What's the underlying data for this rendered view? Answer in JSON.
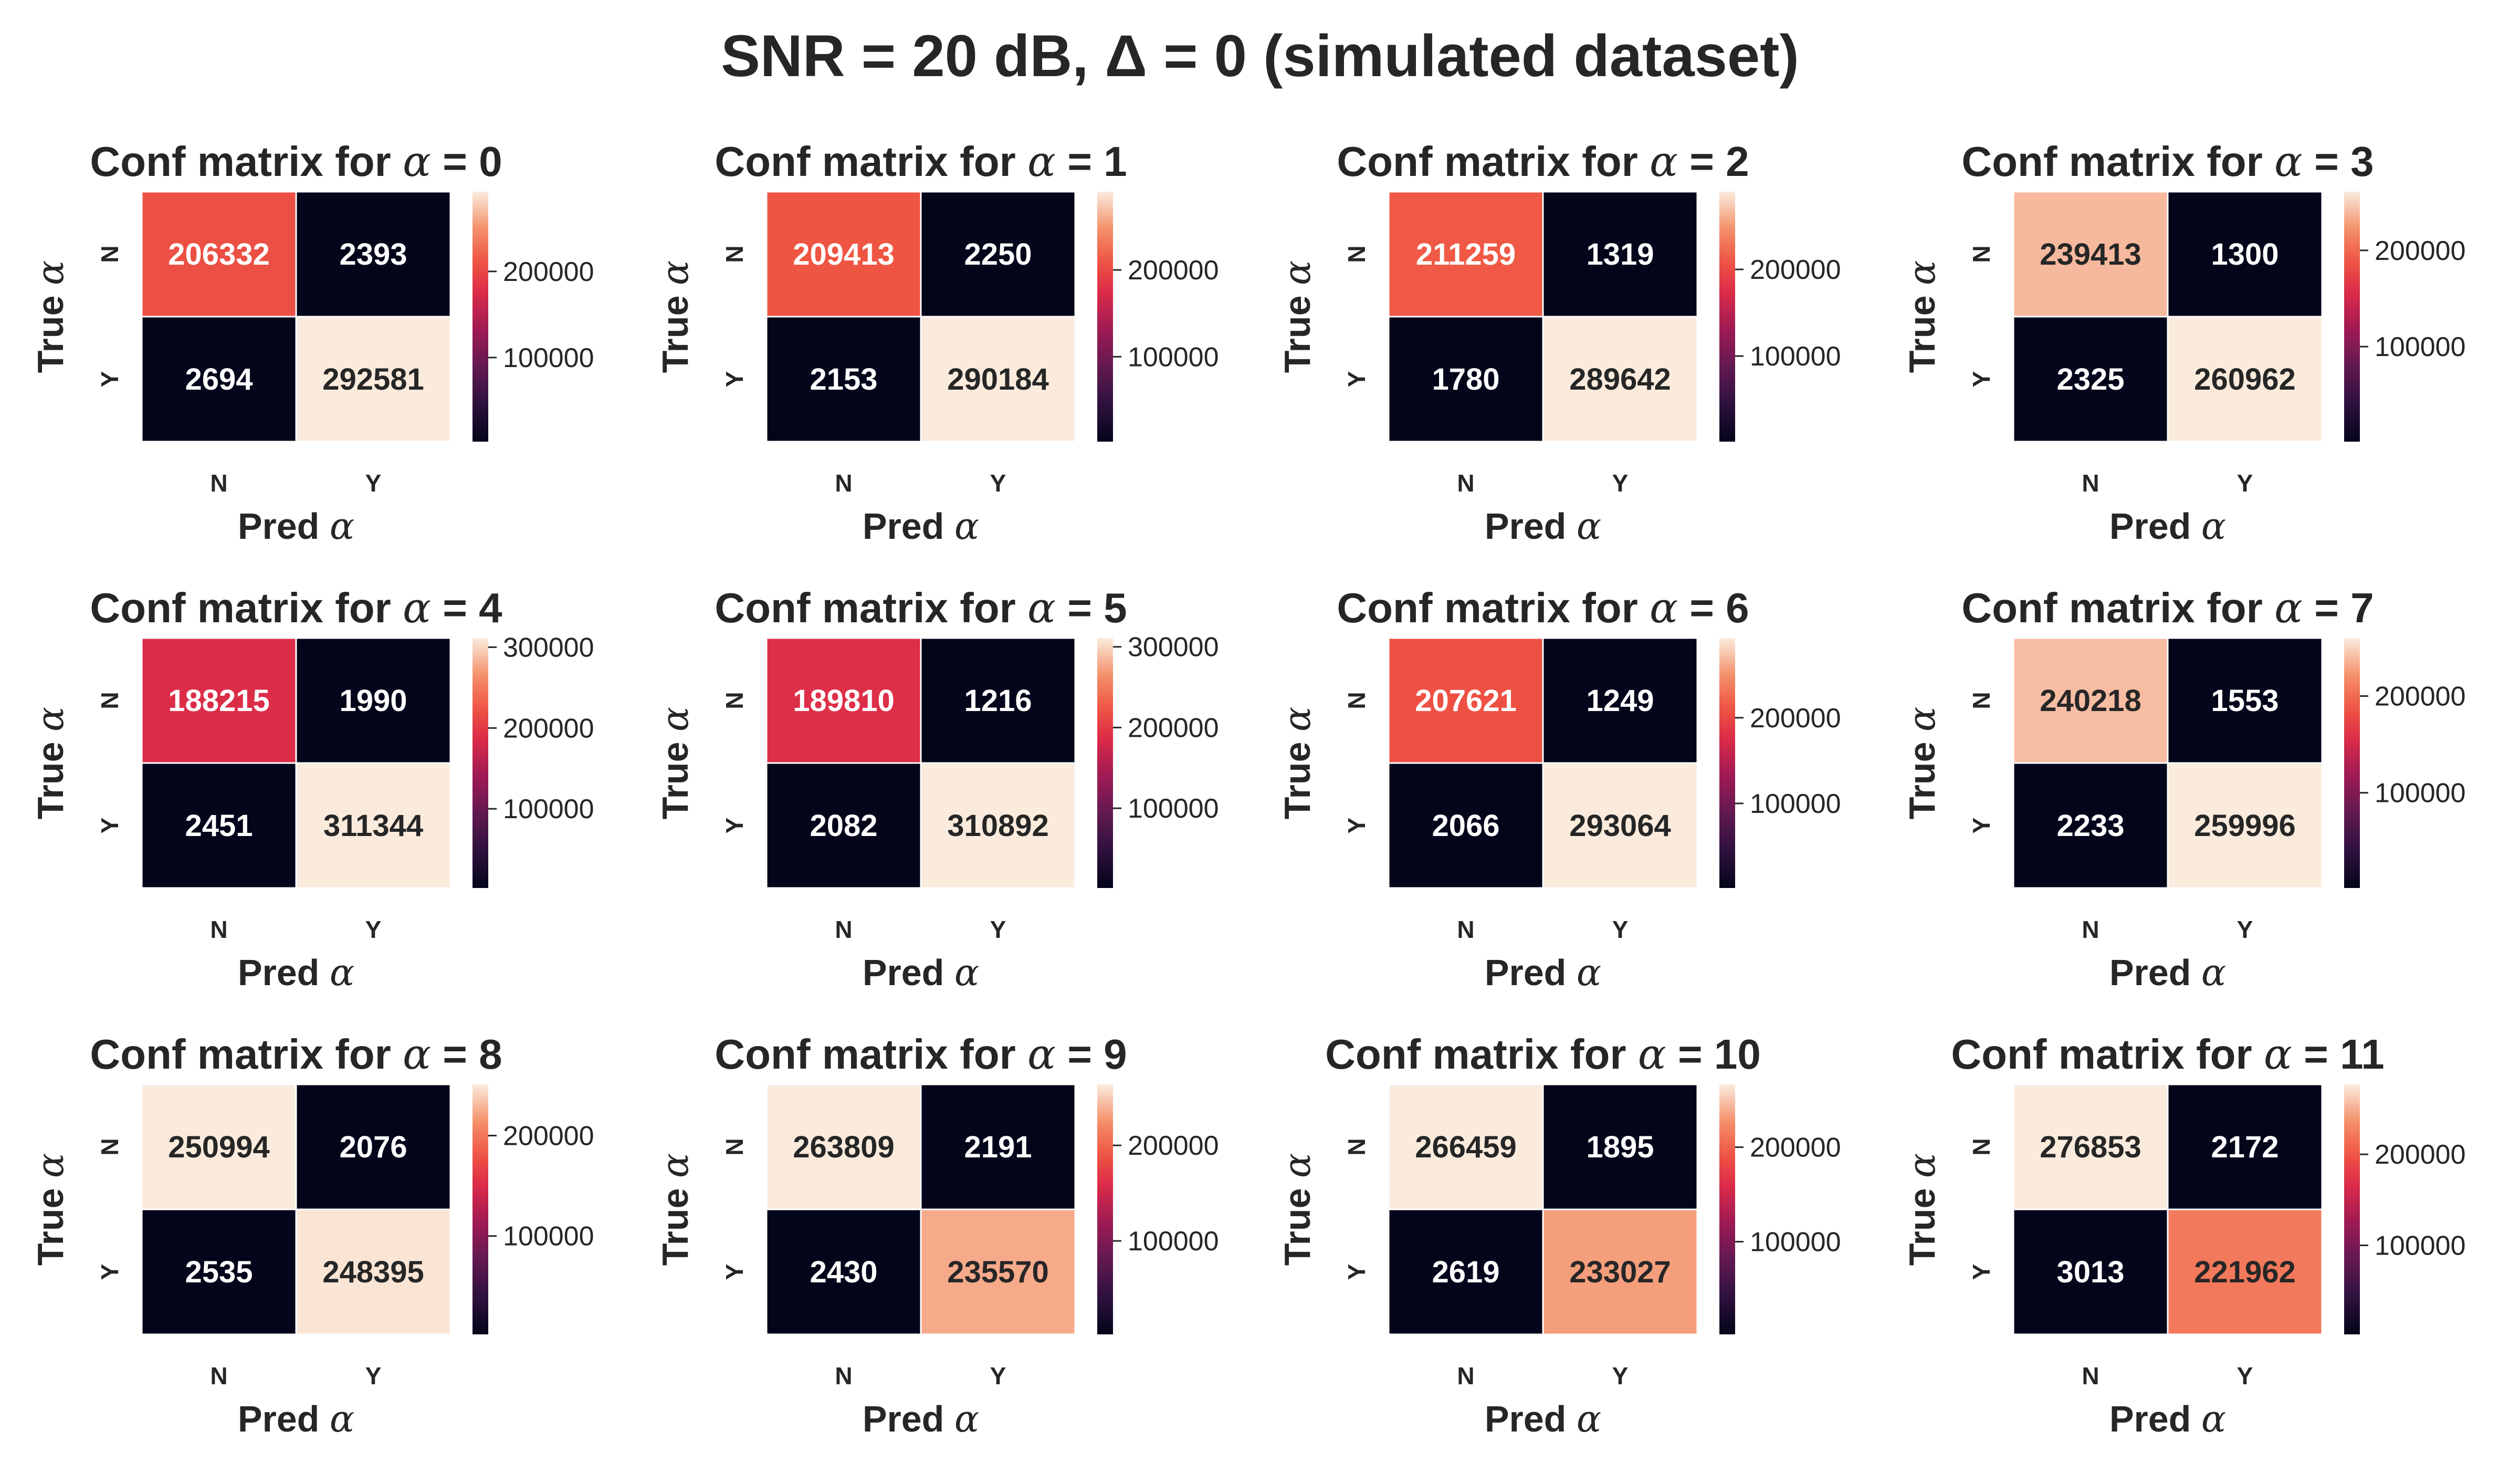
{
  "figure": {
    "suptitle": "SNR = 20 dB, Δ = 0 (simulated dataset)"
  },
  "colormap": "rocket",
  "chart_data": [
    {
      "type": "heatmap",
      "title": "Conf matrix for α = 0",
      "title_prefix": "Conf matrix for ",
      "alpha_symbol": "α",
      "alpha_value": "= 0",
      "xlabel": "Pred α",
      "ylabel": "True α",
      "x_categories": [
        "N",
        "Y"
      ],
      "y_categories": [
        "N",
        "Y"
      ],
      "values": [
        [
          206332,
          2393
        ],
        [
          2694,
          292581
        ]
      ],
      "colorbar_ticks": [
        100000,
        200000
      ],
      "vmin": 2393,
      "vmax": 292581
    },
    {
      "type": "heatmap",
      "title": "Conf matrix for α = 1",
      "title_prefix": "Conf matrix for ",
      "alpha_symbol": "α",
      "alpha_value": "= 1",
      "xlabel": "Pred α",
      "ylabel": "True α",
      "x_categories": [
        "N",
        "Y"
      ],
      "y_categories": [
        "N",
        "Y"
      ],
      "values": [
        [
          209413,
          2250
        ],
        [
          2153,
          290184
        ]
      ],
      "colorbar_ticks": [
        100000,
        200000
      ],
      "vmin": 2153,
      "vmax": 290184
    },
    {
      "type": "heatmap",
      "title": "Conf matrix for α = 2",
      "title_prefix": "Conf matrix for ",
      "alpha_symbol": "α",
      "alpha_value": "= 2",
      "xlabel": "Pred α",
      "ylabel": "True α",
      "x_categories": [
        "N",
        "Y"
      ],
      "y_categories": [
        "N",
        "Y"
      ],
      "values": [
        [
          211259,
          1319
        ],
        [
          1780,
          289642
        ]
      ],
      "colorbar_ticks": [
        100000,
        200000
      ],
      "vmin": 1319,
      "vmax": 289642
    },
    {
      "type": "heatmap",
      "title": "Conf matrix for α = 3",
      "title_prefix": "Conf matrix for ",
      "alpha_symbol": "α",
      "alpha_value": "= 3",
      "xlabel": "Pred α",
      "ylabel": "True α",
      "x_categories": [
        "N",
        "Y"
      ],
      "y_categories": [
        "N",
        "Y"
      ],
      "values": [
        [
          239413,
          1300
        ],
        [
          2325,
          260962
        ]
      ],
      "colorbar_ticks": [
        100000,
        200000
      ],
      "vmin": 1300,
      "vmax": 260962
    },
    {
      "type": "heatmap",
      "title": "Conf matrix for α = 4",
      "title_prefix": "Conf matrix for ",
      "alpha_symbol": "α",
      "alpha_value": "= 4",
      "xlabel": "Pred α",
      "ylabel": "True α",
      "x_categories": [
        "N",
        "Y"
      ],
      "y_categories": [
        "N",
        "Y"
      ],
      "values": [
        [
          188215,
          1990
        ],
        [
          2451,
          311344
        ]
      ],
      "colorbar_ticks": [
        100000,
        200000,
        300000
      ],
      "vmin": 1990,
      "vmax": 311344
    },
    {
      "type": "heatmap",
      "title": "Conf matrix for α = 5",
      "title_prefix": "Conf matrix for ",
      "alpha_symbol": "α",
      "alpha_value": "= 5",
      "xlabel": "Pred α",
      "ylabel": "True α",
      "x_categories": [
        "N",
        "Y"
      ],
      "y_categories": [
        "N",
        "Y"
      ],
      "values": [
        [
          189810,
          1216
        ],
        [
          2082,
          310892
        ]
      ],
      "colorbar_ticks": [
        100000,
        200000,
        300000
      ],
      "vmin": 1216,
      "vmax": 310892
    },
    {
      "type": "heatmap",
      "title": "Conf matrix for α = 6",
      "title_prefix": "Conf matrix for ",
      "alpha_symbol": "α",
      "alpha_value": "= 6",
      "xlabel": "Pred α",
      "ylabel": "True α",
      "x_categories": [
        "N",
        "Y"
      ],
      "y_categories": [
        "N",
        "Y"
      ],
      "values": [
        [
          207621,
          1249
        ],
        [
          2066,
          293064
        ]
      ],
      "colorbar_ticks": [
        100000,
        200000
      ],
      "vmin": 1249,
      "vmax": 293064
    },
    {
      "type": "heatmap",
      "title": "Conf matrix for α = 7",
      "title_prefix": "Conf matrix for ",
      "alpha_symbol": "α",
      "alpha_value": "= 7",
      "xlabel": "Pred α",
      "ylabel": "True α",
      "x_categories": [
        "N",
        "Y"
      ],
      "y_categories": [
        "N",
        "Y"
      ],
      "values": [
        [
          240218,
          1553
        ],
        [
          2233,
          259996
        ]
      ],
      "colorbar_ticks": [
        100000,
        200000
      ],
      "vmin": 1553,
      "vmax": 259996
    },
    {
      "type": "heatmap",
      "title": "Conf matrix for α = 8",
      "title_prefix": "Conf matrix for ",
      "alpha_symbol": "α",
      "alpha_value": "= 8",
      "xlabel": "Pred α",
      "ylabel": "True α",
      "x_categories": [
        "N",
        "Y"
      ],
      "y_categories": [
        "N",
        "Y"
      ],
      "values": [
        [
          250994,
          2076
        ],
        [
          2535,
          248395
        ]
      ],
      "colorbar_ticks": [
        100000,
        200000
      ],
      "vmin": 2076,
      "vmax": 250994
    },
    {
      "type": "heatmap",
      "title": "Conf matrix for α = 9",
      "title_prefix": "Conf matrix for ",
      "alpha_symbol": "α",
      "alpha_value": "= 9",
      "xlabel": "Pred α",
      "ylabel": "True α",
      "x_categories": [
        "N",
        "Y"
      ],
      "y_categories": [
        "N",
        "Y"
      ],
      "values": [
        [
          263809,
          2191
        ],
        [
          2430,
          235570
        ]
      ],
      "colorbar_ticks": [
        100000,
        200000
      ],
      "vmin": 2191,
      "vmax": 263809
    },
    {
      "type": "heatmap",
      "title": "Conf matrix for α = 10",
      "title_prefix": "Conf matrix for ",
      "alpha_symbol": "α",
      "alpha_value": "= 10",
      "xlabel": "Pred α",
      "ylabel": "True α",
      "x_categories": [
        "N",
        "Y"
      ],
      "y_categories": [
        "N",
        "Y"
      ],
      "values": [
        [
          266459,
          1895
        ],
        [
          2619,
          233027
        ]
      ],
      "colorbar_ticks": [
        100000,
        200000
      ],
      "vmin": 1895,
      "vmax": 266459
    },
    {
      "type": "heatmap",
      "title": "Conf matrix for α = 11",
      "title_prefix": "Conf matrix for ",
      "alpha_symbol": "α",
      "alpha_value": "= 11",
      "xlabel": "Pred α",
      "ylabel": "True α",
      "x_categories": [
        "N",
        "Y"
      ],
      "y_categories": [
        "N",
        "Y"
      ],
      "values": [
        [
          276853,
          2172
        ],
        [
          3013,
          221962
        ]
      ],
      "colorbar_ticks": [
        100000,
        200000
      ],
      "vmin": 2172,
      "vmax": 276853
    }
  ]
}
